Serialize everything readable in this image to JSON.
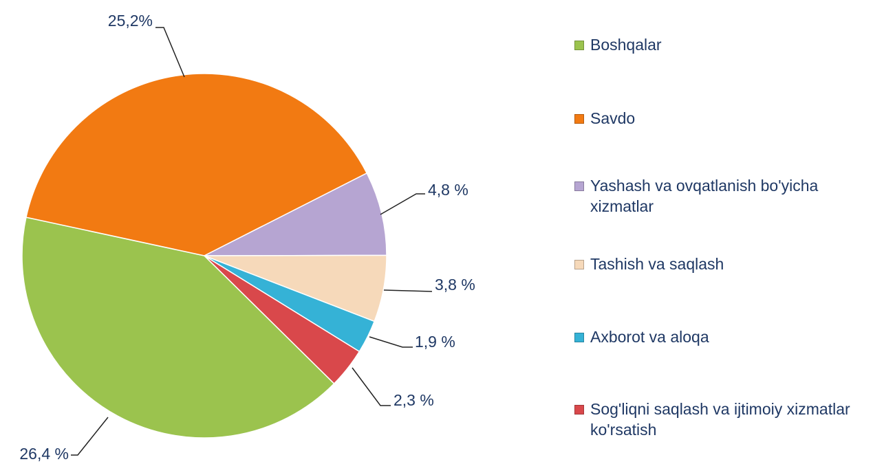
{
  "chart_data": {
    "type": "pie",
    "categories": [
      "Boshqalar",
      "Savdo",
      "Yashash va ovqatlanish bo'yicha xizmatlar",
      "Tashish va saqlash",
      "Axborot va aloqa",
      "Sog'liqni saqlash  va ijtimoiy xizmatlar ko'rsatish"
    ],
    "values": [
      26.4,
      25.2,
      4.8,
      3.8,
      1.9,
      2.3
    ],
    "value_labels": [
      "26,4 %",
      "25,2%",
      "4,8 %",
      "3,8 %",
      "1,9 %",
      "2,3 %"
    ],
    "colors": [
      "#9bc34e",
      "#f27a12",
      "#b6a5d2",
      "#f6d9ba",
      "#35b2d6",
      "#d9484b"
    ],
    "legend": "right"
  }
}
